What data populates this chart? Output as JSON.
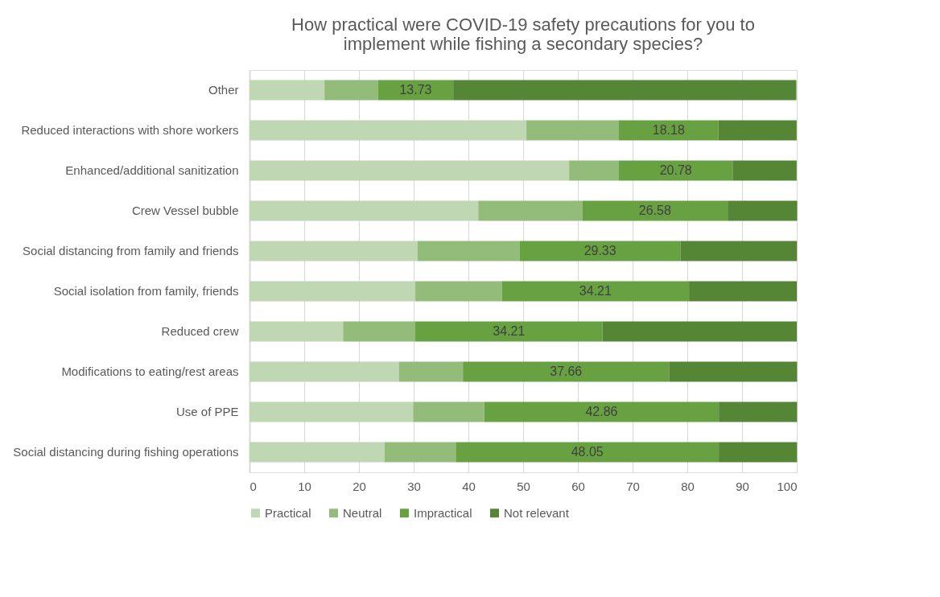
{
  "chart_data": {
    "type": "bar",
    "orientation": "horizontal",
    "stacked": true,
    "title": "How practical were COVID-19 safety precautions for you to\nimplement while fishing a secondary species?",
    "categories": [
      "Other",
      "Reduced interactions with shore workers",
      "Enhanced/additional sanitization",
      "Crew Vessel bubble",
      "Social distancing from family and friends",
      "Social isolation from family, friends",
      "Reduced crew",
      "Modifications to eating/rest areas",
      "Use of PPE",
      "Social distancing during fishing operations"
    ],
    "series": [
      {
        "name": "Practical",
        "color": "#c0d7b4",
        "values": [
          13.7,
          50.6,
          58.4,
          41.8,
          30.7,
          30.3,
          17.1,
          27.3,
          29.9,
          24.7
        ]
      },
      {
        "name": "Neutral",
        "color": "#93bb7a",
        "values": [
          9.8,
          16.9,
          9.1,
          19.0,
          18.7,
          15.8,
          13.2,
          11.7,
          13.0,
          13.0
        ]
      },
      {
        "name": "Impractical",
        "color": "#68a142",
        "values": [
          13.73,
          18.18,
          20.78,
          26.58,
          29.33,
          34.21,
          34.21,
          37.66,
          42.86,
          48.05
        ],
        "value_labels": [
          "13.73",
          "18.18",
          "20.78",
          "26.58",
          "29.33",
          "34.21",
          "34.21",
          "37.66",
          "42.86",
          "48.05"
        ]
      },
      {
        "name": "Not relevant",
        "color": "#548636",
        "values": [
          62.7,
          14.3,
          11.7,
          12.7,
          21.3,
          19.7,
          35.5,
          23.4,
          14.3,
          14.3
        ]
      }
    ],
    "xlim": [
      0,
      100
    ],
    "xticks": [
      0,
      10,
      20,
      30,
      40,
      50,
      60,
      70,
      80,
      90,
      100
    ],
    "grid": "x",
    "legend": "bottom"
  }
}
